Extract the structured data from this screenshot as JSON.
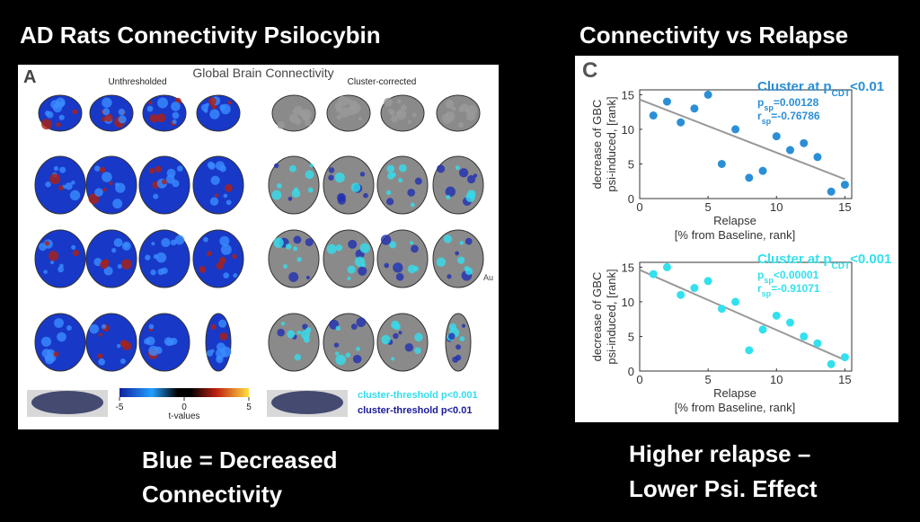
{
  "slide": {
    "left_title": "AD Rats Connectivity Psilocybin",
    "right_title": "Connectivity vs Relapse",
    "left_caption": [
      "Blue = Decreased",
      "Connectivity"
    ],
    "right_caption": [
      "Higher relapse –",
      "Lower Psi. Effect"
    ]
  },
  "panel_a": {
    "label": "A",
    "title": "Global Brain Connectivity",
    "left_heading": "Unthresholded",
    "right_heading": "Cluster-corrected",
    "cut_label": "Au",
    "colorbar": {
      "lim": [
        -5,
        5
      ],
      "ticks": [
        -5,
        0,
        5
      ],
      "label": "t-values"
    },
    "legend": [
      {
        "text": "cluster-threshold p<0.001",
        "color": "#33ddee"
      },
      {
        "text": "cluster-threshold p<0.01",
        "color": "#1a1a9a"
      }
    ]
  },
  "chart_data": [
    {
      "type": "scatter",
      "panel_label": "C",
      "x_label": [
        "Relapse",
        "[% from Baseline, rank]"
      ],
      "y_label": [
        "decrease of GBC",
        "psi-induced, [rank]"
      ],
      "annotation_color": "#2b8fd6",
      "annotation": [
        [
          "Cluster at p",
          "CDT",
          "<0.01"
        ],
        [
          "p",
          "sp",
          "=0.00128"
        ],
        [
          "r",
          "sp",
          "=-0.76786"
        ]
      ],
      "xlim": [
        0,
        15.5
      ],
      "ylim": [
        0,
        15.7
      ],
      "xticks": [
        0,
        5,
        10,
        15
      ],
      "yticks": [
        0,
        5,
        10,
        15
      ],
      "series": [
        {
          "color": "#2b8fd6",
          "x": [
            1,
            2,
            3,
            4,
            5,
            6,
            7,
            8,
            9,
            10,
            11,
            12,
            13,
            14,
            15
          ],
          "values": [
            12,
            14,
            11,
            13,
            15,
            5,
            10,
            3,
            4,
            9,
            7,
            8,
            6,
            1,
            2
          ]
        }
      ],
      "trend_line": {
        "color": "#999999",
        "x": [
          0,
          15
        ],
        "values": [
          14.3,
          2.8
        ]
      }
    },
    {
      "type": "scatter",
      "panel_label": null,
      "x_label": [
        "Relapse",
        "[% from Baseline, rank]"
      ],
      "y_label": [
        "decrease of GBC",
        "psi-induced, [rank]"
      ],
      "annotation_color": "#33e0ee",
      "annotation": [
        [
          "Cluster at p",
          "CDT",
          "<0.001"
        ],
        [
          "p",
          "sp",
          "<0.00001"
        ],
        [
          "r",
          "sp",
          "=-0.91071"
        ]
      ],
      "xlim": [
        0,
        15.5
      ],
      "ylim": [
        0,
        15.7
      ],
      "xticks": [
        0,
        5,
        10,
        15
      ],
      "yticks": [
        0,
        5,
        10,
        15
      ],
      "series": [
        {
          "color": "#33e0ee",
          "x": [
            1,
            2,
            3,
            4,
            5,
            6,
            7,
            8,
            9,
            10,
            11,
            12,
            13,
            14,
            15
          ],
          "values": [
            14,
            15,
            11,
            12,
            13,
            9,
            10,
            3,
            6,
            8,
            7,
            5,
            4,
            1,
            2
          ]
        }
      ],
      "trend_line": {
        "color": "#999999",
        "x": [
          0,
          15
        ],
        "values": [
          14.6,
          1.6
        ]
      }
    }
  ]
}
